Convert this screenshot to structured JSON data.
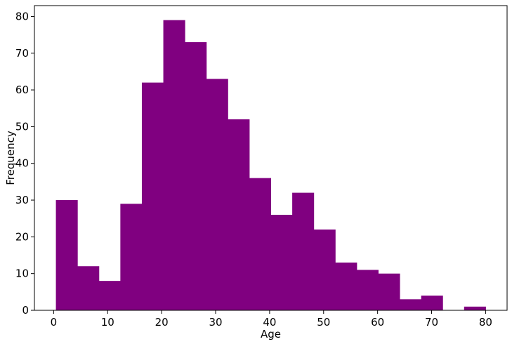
{
  "chart_data": {
    "type": "bar",
    "title": "",
    "xlabel": "Age",
    "ylabel": "Frequency",
    "bar_color": "#800080",
    "bin_edges": [
      0.42,
      4.399,
      8.378,
      12.357,
      16.336,
      20.315,
      24.294,
      28.273,
      32.252,
      36.231,
      40.21,
      44.189,
      48.168,
      52.147,
      56.126,
      60.105,
      64.084,
      68.063,
      72.042,
      76.021,
      80.0
    ],
    "values": [
      30,
      12,
      8,
      29,
      62,
      79,
      73,
      63,
      52,
      36,
      26,
      32,
      22,
      13,
      11,
      10,
      3,
      4,
      0,
      1
    ],
    "xlim": [
      -3.559,
      83.979
    ],
    "ylim": [
      0,
      82.95
    ],
    "xticks": [
      0,
      10,
      20,
      30,
      40,
      50,
      60,
      70,
      80
    ],
    "yticks": [
      0,
      10,
      20,
      30,
      40,
      50,
      60,
      70,
      80
    ],
    "grid": false,
    "legend": "none"
  }
}
